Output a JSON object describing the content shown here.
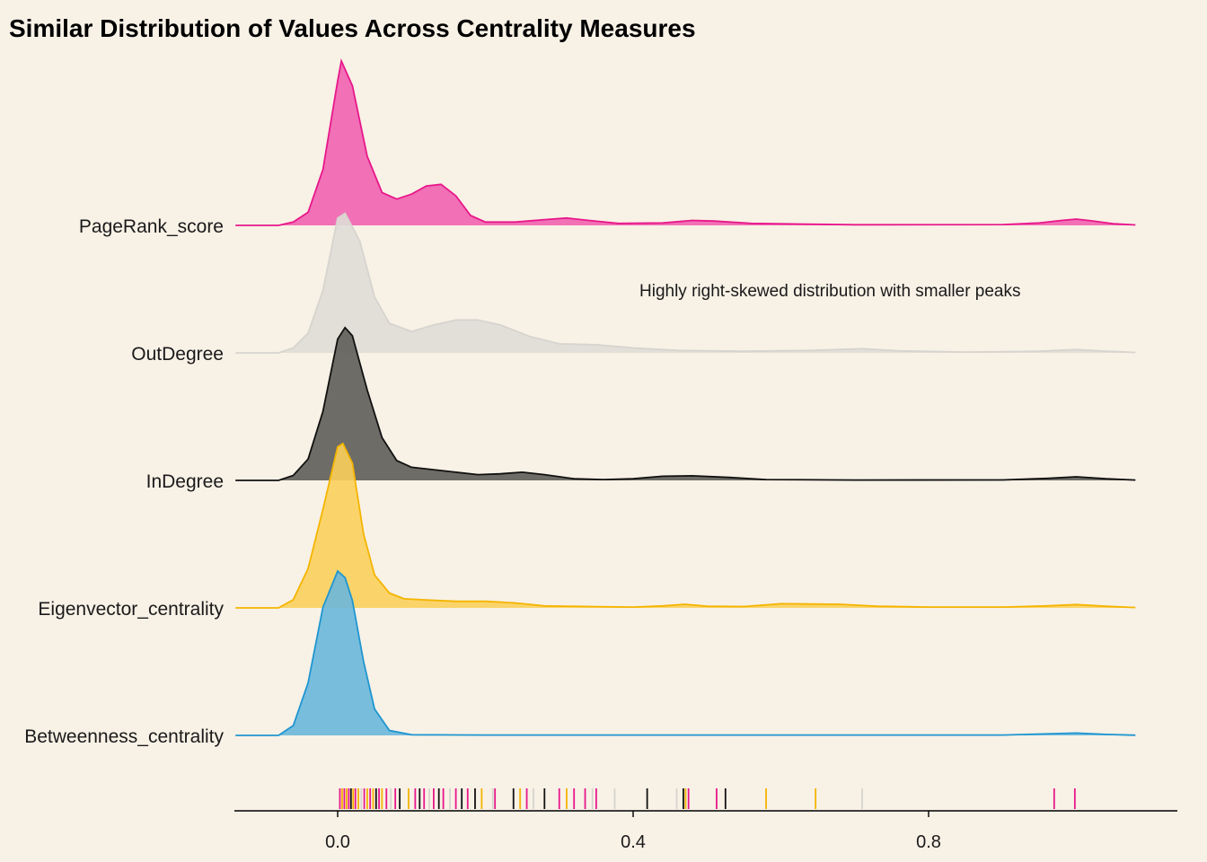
{
  "chart_data": {
    "type": "ridgeline",
    "title": "Similar Distribution of Values Across Centrality Measures",
    "xlabel": "",
    "ylabel": "",
    "xlim": [
      -0.14,
      1.14
    ],
    "x_ticks": [
      "0.0",
      "0.4",
      "0.8"
    ],
    "x_tick_values": [
      0.0,
      0.4,
      0.8
    ],
    "annotation": "Highly right-skewed distribution with smaller peaks",
    "grid": false,
    "series": [
      {
        "name": "PageRank_score",
        "color": "#e8178a",
        "fill": "#f062b0",
        "density": [
          [
            -0.08,
            0
          ],
          [
            -0.06,
            0.02
          ],
          [
            -0.04,
            0.08
          ],
          [
            -0.02,
            0.34
          ],
          [
            0.0,
            0.88
          ],
          [
            0.005,
            1.0
          ],
          [
            0.02,
            0.85
          ],
          [
            0.04,
            0.42
          ],
          [
            0.06,
            0.2
          ],
          [
            0.08,
            0.16
          ],
          [
            0.1,
            0.19
          ],
          [
            0.12,
            0.24
          ],
          [
            0.14,
            0.25
          ],
          [
            0.16,
            0.18
          ],
          [
            0.18,
            0.06
          ],
          [
            0.2,
            0.02
          ],
          [
            0.24,
            0.02
          ],
          [
            0.28,
            0.035
          ],
          [
            0.31,
            0.045
          ],
          [
            0.34,
            0.03
          ],
          [
            0.38,
            0.012
          ],
          [
            0.44,
            0.015
          ],
          [
            0.48,
            0.03
          ],
          [
            0.51,
            0.026
          ],
          [
            0.56,
            0.012
          ],
          [
            0.7,
            0.004
          ],
          [
            0.9,
            0.005
          ],
          [
            0.95,
            0.015
          ],
          [
            0.98,
            0.03
          ],
          [
            1.0,
            0.038
          ],
          [
            1.02,
            0.028
          ],
          [
            1.05,
            0.01
          ],
          [
            1.08,
            0.003
          ]
        ]
      },
      {
        "name": "OutDegree",
        "color": "#d6d4ce",
        "fill": "#dfddd6",
        "density": [
          [
            -0.08,
            0
          ],
          [
            -0.06,
            0.03
          ],
          [
            -0.04,
            0.12
          ],
          [
            -0.02,
            0.38
          ],
          [
            0.0,
            0.82
          ],
          [
            0.01,
            0.85
          ],
          [
            0.03,
            0.68
          ],
          [
            0.05,
            0.34
          ],
          [
            0.07,
            0.18
          ],
          [
            0.1,
            0.13
          ],
          [
            0.13,
            0.17
          ],
          [
            0.16,
            0.2
          ],
          [
            0.19,
            0.2
          ],
          [
            0.22,
            0.17
          ],
          [
            0.26,
            0.1
          ],
          [
            0.3,
            0.055
          ],
          [
            0.35,
            0.05
          ],
          [
            0.4,
            0.03
          ],
          [
            0.46,
            0.015
          ],
          [
            0.55,
            0.01
          ],
          [
            0.64,
            0.015
          ],
          [
            0.71,
            0.025
          ],
          [
            0.76,
            0.012
          ],
          [
            0.85,
            0.005
          ],
          [
            0.95,
            0.01
          ],
          [
            1.0,
            0.02
          ],
          [
            1.04,
            0.01
          ],
          [
            1.08,
            0.003
          ]
        ]
      },
      {
        "name": "InDegree",
        "color": "#111111",
        "fill": "#5e5d58",
        "density": [
          [
            -0.08,
            0
          ],
          [
            -0.06,
            0.03
          ],
          [
            -0.04,
            0.13
          ],
          [
            -0.02,
            0.42
          ],
          [
            0.0,
            0.86
          ],
          [
            0.01,
            0.93
          ],
          [
            0.02,
            0.88
          ],
          [
            0.04,
            0.55
          ],
          [
            0.06,
            0.26
          ],
          [
            0.08,
            0.12
          ],
          [
            0.1,
            0.08
          ],
          [
            0.13,
            0.065
          ],
          [
            0.16,
            0.05
          ],
          [
            0.19,
            0.035
          ],
          [
            0.22,
            0.04
          ],
          [
            0.25,
            0.05
          ],
          [
            0.28,
            0.035
          ],
          [
            0.32,
            0.01
          ],
          [
            0.36,
            0.005
          ],
          [
            0.4,
            0.01
          ],
          [
            0.44,
            0.025
          ],
          [
            0.48,
            0.028
          ],
          [
            0.53,
            0.018
          ],
          [
            0.58,
            0.005
          ],
          [
            0.7,
            0.002
          ],
          [
            0.9,
            0.003
          ],
          [
            0.96,
            0.012
          ],
          [
            1.0,
            0.022
          ],
          [
            1.04,
            0.01
          ],
          [
            1.08,
            0.002
          ]
        ]
      },
      {
        "name": "Eigenvector_centrality",
        "color": "#f4b400",
        "fill": "#f9d05c",
        "density": [
          [
            -0.08,
            0
          ],
          [
            -0.06,
            0.05
          ],
          [
            -0.04,
            0.24
          ],
          [
            -0.02,
            0.6
          ],
          [
            0.0,
            0.98
          ],
          [
            0.007,
            1.0
          ],
          [
            0.02,
            0.88
          ],
          [
            0.035,
            0.45
          ],
          [
            0.05,
            0.2
          ],
          [
            0.07,
            0.09
          ],
          [
            0.09,
            0.055
          ],
          [
            0.12,
            0.048
          ],
          [
            0.16,
            0.04
          ],
          [
            0.2,
            0.04
          ],
          [
            0.24,
            0.03
          ],
          [
            0.28,
            0.012
          ],
          [
            0.34,
            0.008
          ],
          [
            0.4,
            0.005
          ],
          [
            0.44,
            0.012
          ],
          [
            0.47,
            0.022
          ],
          [
            0.5,
            0.01
          ],
          [
            0.55,
            0.008
          ],
          [
            0.6,
            0.025
          ],
          [
            0.68,
            0.022
          ],
          [
            0.73,
            0.01
          ],
          [
            0.8,
            0.005
          ],
          [
            0.9,
            0.005
          ],
          [
            0.96,
            0.012
          ],
          [
            1.0,
            0.02
          ],
          [
            1.04,
            0.01
          ],
          [
            1.08,
            0.002
          ]
        ]
      },
      {
        "name": "Betweenness_centrality",
        "color": "#1f96d0",
        "fill": "#6ab7db",
        "density": [
          [
            -0.08,
            0
          ],
          [
            -0.06,
            0.06
          ],
          [
            -0.04,
            0.32
          ],
          [
            -0.02,
            0.78
          ],
          [
            0.0,
            1.0
          ],
          [
            0.01,
            0.96
          ],
          [
            0.02,
            0.82
          ],
          [
            0.035,
            0.45
          ],
          [
            0.05,
            0.16
          ],
          [
            0.07,
            0.03
          ],
          [
            0.1,
            0.004
          ],
          [
            0.2,
            0.002
          ],
          [
            0.5,
            0.002
          ],
          [
            0.9,
            0.002
          ],
          [
            0.95,
            0.008
          ],
          [
            1.0,
            0.014
          ],
          [
            1.04,
            0.006
          ],
          [
            1.08,
            0.001
          ]
        ]
      }
    ],
    "rug": [
      {
        "x": 0.003,
        "series": "PageRank_score"
      },
      {
        "x": 0.006,
        "series": "Eigenvector_centrality"
      },
      {
        "x": 0.009,
        "series": "PageRank_score"
      },
      {
        "x": 0.012,
        "series": "Eigenvector_centrality"
      },
      {
        "x": 0.015,
        "series": "PageRank_score"
      },
      {
        "x": 0.018,
        "series": "InDegree"
      },
      {
        "x": 0.021,
        "series": "Eigenvector_centrality"
      },
      {
        "x": 0.024,
        "series": "PageRank_score"
      },
      {
        "x": 0.028,
        "series": "Eigenvector_centrality"
      },
      {
        "x": 0.032,
        "series": "OutDegree"
      },
      {
        "x": 0.036,
        "series": "PageRank_score"
      },
      {
        "x": 0.04,
        "series": "Eigenvector_centrality"
      },
      {
        "x": 0.044,
        "series": "PageRank_score"
      },
      {
        "x": 0.048,
        "series": "Eigenvector_centrality"
      },
      {
        "x": 0.052,
        "series": "InDegree"
      },
      {
        "x": 0.056,
        "series": "PageRank_score"
      },
      {
        "x": 0.06,
        "series": "Eigenvector_centrality"
      },
      {
        "x": 0.066,
        "series": "PageRank_score"
      },
      {
        "x": 0.072,
        "series": "OutDegree"
      },
      {
        "x": 0.078,
        "series": "PageRank_score"
      },
      {
        "x": 0.084,
        "series": "InDegree"
      },
      {
        "x": 0.096,
        "series": "Eigenvector_centrality"
      },
      {
        "x": 0.105,
        "series": "PageRank_score"
      },
      {
        "x": 0.111,
        "series": "InDegree"
      },
      {
        "x": 0.117,
        "series": "PageRank_score"
      },
      {
        "x": 0.124,
        "series": "OutDegree"
      },
      {
        "x": 0.13,
        "series": "PageRank_score"
      },
      {
        "x": 0.137,
        "series": "InDegree"
      },
      {
        "x": 0.143,
        "series": "PageRank_score"
      },
      {
        "x": 0.152,
        "series": "OutDegree"
      },
      {
        "x": 0.16,
        "series": "PageRank_score"
      },
      {
        "x": 0.168,
        "series": "InDegree"
      },
      {
        "x": 0.176,
        "series": "PageRank_score"
      },
      {
        "x": 0.186,
        "series": "InDegree"
      },
      {
        "x": 0.195,
        "series": "Eigenvector_centrality"
      },
      {
        "x": 0.21,
        "series": "OutDegree"
      },
      {
        "x": 0.213,
        "series": "PageRank_score"
      },
      {
        "x": 0.238,
        "series": "InDegree"
      },
      {
        "x": 0.247,
        "series": "Eigenvector_centrality"
      },
      {
        "x": 0.256,
        "series": "PageRank_score"
      },
      {
        "x": 0.265,
        "series": "OutDegree"
      },
      {
        "x": 0.28,
        "series": "InDegree"
      },
      {
        "x": 0.3,
        "series": "PageRank_score"
      },
      {
        "x": 0.31,
        "series": "Eigenvector_centrality"
      },
      {
        "x": 0.32,
        "series": "PageRank_score"
      },
      {
        "x": 0.335,
        "series": "PageRank_score"
      },
      {
        "x": 0.345,
        "series": "OutDegree"
      },
      {
        "x": 0.35,
        "series": "PageRank_score"
      },
      {
        "x": 0.375,
        "series": "OutDegree"
      },
      {
        "x": 0.419,
        "series": "InDegree"
      },
      {
        "x": 0.459,
        "series": "OutDegree"
      },
      {
        "x": 0.468,
        "series": "InDegree"
      },
      {
        "x": 0.471,
        "series": "Eigenvector_centrality"
      },
      {
        "x": 0.475,
        "series": "PageRank_score"
      },
      {
        "x": 0.513,
        "series": "PageRank_score"
      },
      {
        "x": 0.525,
        "series": "InDegree"
      },
      {
        "x": 0.58,
        "series": "Eigenvector_centrality"
      },
      {
        "x": 0.647,
        "series": "Eigenvector_centrality"
      },
      {
        "x": 0.71,
        "series": "OutDegree"
      },
      {
        "x": 0.97,
        "series": "PageRank_score"
      },
      {
        "x": 0.998,
        "series": "PageRank_score"
      }
    ]
  }
}
